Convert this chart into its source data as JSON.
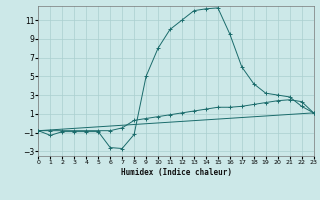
{
  "title": "",
  "xlabel": "Humidex (Indice chaleur)",
  "background_color": "#cce8e8",
  "grid_color": "#aacfcf",
  "line_color": "#1a6b6b",
  "xlim": [
    0,
    23
  ],
  "ylim": [
    -3.5,
    12.5
  ],
  "yticks": [
    -3,
    -1,
    1,
    3,
    5,
    7,
    9,
    11
  ],
  "xticks": [
    0,
    1,
    2,
    3,
    4,
    5,
    6,
    7,
    8,
    9,
    10,
    11,
    12,
    13,
    14,
    15,
    16,
    17,
    18,
    19,
    20,
    21,
    22,
    23
  ],
  "curve1_x": [
    0,
    1,
    2,
    3,
    4,
    5,
    6,
    7,
    8,
    9,
    10,
    11,
    12,
    13,
    14,
    15,
    16,
    17,
    18,
    19,
    20,
    21,
    22,
    23
  ],
  "curve1_y": [
    -0.8,
    -1.3,
    -0.9,
    -0.9,
    -0.9,
    -0.9,
    -2.6,
    -2.7,
    -1.2,
    5.0,
    8.0,
    10.0,
    11.0,
    12.0,
    12.2,
    12.3,
    9.5,
    6.0,
    4.2,
    3.2,
    3.0,
    2.8,
    1.8,
    1.1
  ],
  "curve2_x": [
    0,
    1,
    2,
    3,
    4,
    5,
    6,
    7,
    8,
    9,
    10,
    11,
    12,
    13,
    14,
    15,
    16,
    17,
    18,
    19,
    20,
    21,
    22,
    23
  ],
  "curve2_y": [
    -0.8,
    -0.8,
    -0.8,
    -0.8,
    -0.8,
    -0.8,
    -0.8,
    -0.5,
    0.3,
    0.5,
    0.7,
    0.9,
    1.1,
    1.3,
    1.5,
    1.7,
    1.7,
    1.8,
    2.0,
    2.2,
    2.4,
    2.5,
    2.3,
    1.1
  ],
  "curve3_x": [
    0,
    23
  ],
  "curve3_y": [
    -0.8,
    1.1
  ]
}
